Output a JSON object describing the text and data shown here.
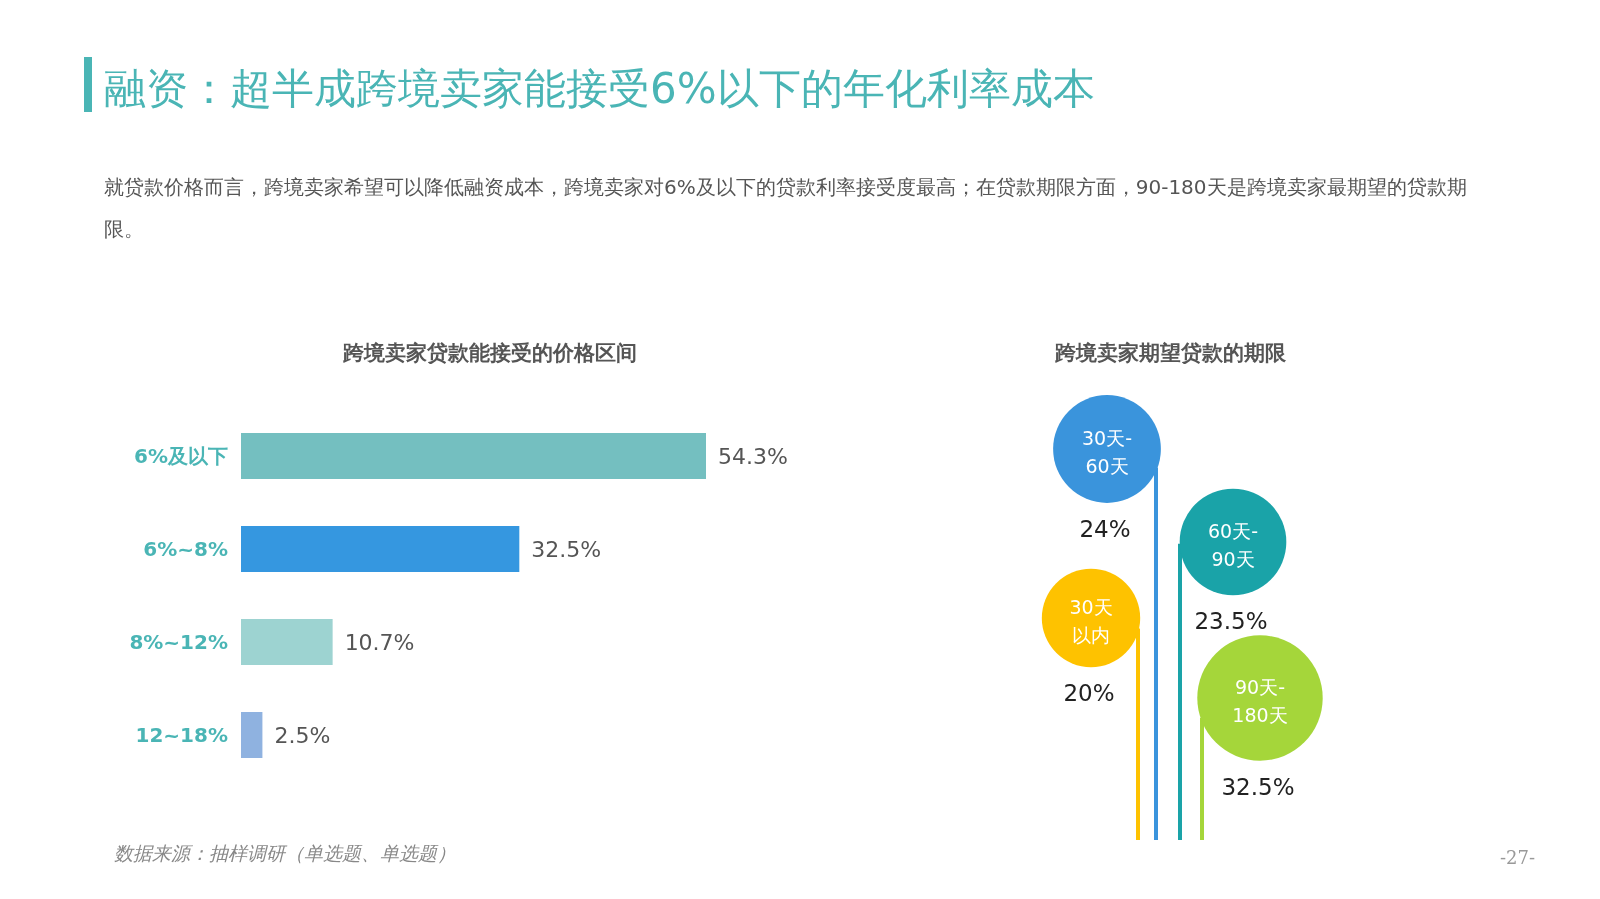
{
  "chart_data": [
    {
      "type": "other",
      "title": "融资：超半成跨境卖家能接受6%以下的年化利率成本",
      "subtitle": "就贷款价格而言，跨境卖家希望可以降低融资成本，跨境卖家对6%及以下的贷款利率接受度最高；在贷款期限方面，90-180天是跨境卖家最期望的贷款期限。",
      "annotations": [
        "-27-"
      ]
    },
    {
      "type": "bar",
      "orientation": "horizontal",
      "title": "跨境卖家贷款能接受的价格区间",
      "categories": [
        "6%及以下",
        "6%~8%",
        "8%~12%",
        "12~18%"
      ],
      "values": [
        54.3,
        32.5,
        10.7,
        2.5
      ],
      "value_labels": [
        "54.3%",
        "32.5%",
        "10.7%",
        "2.5%"
      ],
      "colors": [
        "#74bfc0",
        "#3597e0",
        "#9dd3d1",
        "#8fb2e0"
      ],
      "annotations": [
        "数据来源：抽样调研（单选题、单选题）"
      ]
    },
    {
      "type": "other",
      "title": "跨境卖家期望贷款的期限",
      "categories": [
        "30天以内",
        "30天-60天",
        "60天-90天",
        "90天-180天"
      ],
      "values": [
        20,
        24,
        23.5,
        32.5
      ],
      "value_labels": [
        "20%",
        "24%",
        "23.5%",
        "32.5%"
      ],
      "colors": [
        "#fec200",
        "#3a94dc",
        "#1aa3a8",
        "#a5d63a"
      ]
    }
  ]
}
